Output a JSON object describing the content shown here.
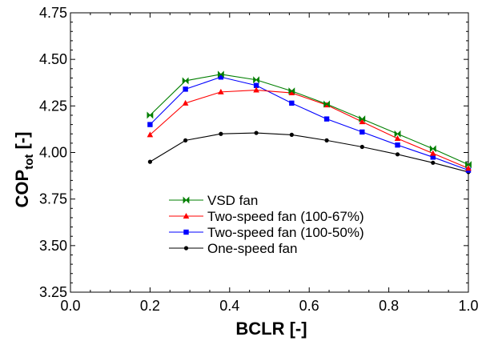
{
  "chart_data": {
    "type": "line",
    "xlabel": "BCLR [-]",
    "ylabel_main": "COP",
    "ylabel_sub": "tot",
    "ylabel_suffix": " [-]",
    "xlim": [
      0.0,
      1.0
    ],
    "ylim": [
      3.25,
      4.75
    ],
    "xticks": [
      "0.0",
      "0.2",
      "0.4",
      "0.6",
      "0.8",
      "1.0"
    ],
    "yticks": [
      "3.25",
      "3.50",
      "3.75",
      "4.00",
      "4.25",
      "4.50",
      "4.75"
    ],
    "grid": false,
    "legend_position": "lower-middle",
    "x": [
      0.2,
      0.289,
      0.378,
      0.467,
      0.556,
      0.644,
      0.733,
      0.822,
      0.911,
      1.0
    ],
    "series": [
      {
        "name": "VSD fan",
        "color": "#007f00",
        "marker": "bowtie",
        "values": [
          4.2,
          4.385,
          4.42,
          4.39,
          4.33,
          4.26,
          4.18,
          4.1,
          4.02,
          3.935
        ]
      },
      {
        "name": "Two-speed fan (100-67%)",
        "color": "#ff0000",
        "marker": "triangle",
        "values": [
          4.095,
          4.265,
          4.325,
          4.335,
          4.32,
          4.255,
          4.165,
          4.075,
          3.995,
          3.915
        ]
      },
      {
        "name": "Two-speed fan (100-50%)",
        "color": "#0000ff",
        "marker": "square",
        "values": [
          4.15,
          4.34,
          4.405,
          4.36,
          4.265,
          4.18,
          4.11,
          4.04,
          3.975,
          3.905
        ]
      },
      {
        "name": "One-speed fan",
        "color": "#000000",
        "marker": "circle",
        "values": [
          3.95,
          4.065,
          4.1,
          4.105,
          4.095,
          4.065,
          4.03,
          3.99,
          3.945,
          3.895
        ]
      }
    ]
  }
}
